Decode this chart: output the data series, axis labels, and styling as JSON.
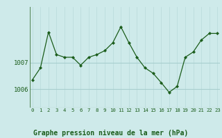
{
  "x": [
    0,
    1,
    2,
    3,
    4,
    5,
    6,
    7,
    8,
    9,
    10,
    11,
    12,
    13,
    14,
    15,
    16,
    17,
    18,
    19,
    20,
    21,
    22,
    23
  ],
  "y": [
    1006.35,
    1006.8,
    1008.15,
    1007.3,
    1007.2,
    1007.2,
    1006.9,
    1007.2,
    1007.3,
    1007.45,
    1007.75,
    1008.35,
    1007.75,
    1007.2,
    1006.8,
    1006.6,
    1006.25,
    1005.88,
    1006.1,
    1007.2,
    1007.4,
    1007.85,
    1008.1,
    1008.1
  ],
  "title": "Graphe pression niveau de la mer (hPa)",
  "bg_color": "#ceeaea",
  "line_color": "#1a5c1a",
  "marker_color": "#1a5c1a",
  "hgrid_color": "#a8cece",
  "vgrid_color": "#bcdcdc",
  "border_color": "#5a8a5a",
  "tick_label_color": "#1a5c1a",
  "title_color": "#1a5c1a",
  "title_fontsize": 7.0,
  "ytick_fontsize": 6.5,
  "xtick_fontsize": 5.2,
  "ylim_min": 1005.3,
  "ylim_max": 1009.1,
  "xlim_min": -0.3,
  "xlim_max": 23.3
}
